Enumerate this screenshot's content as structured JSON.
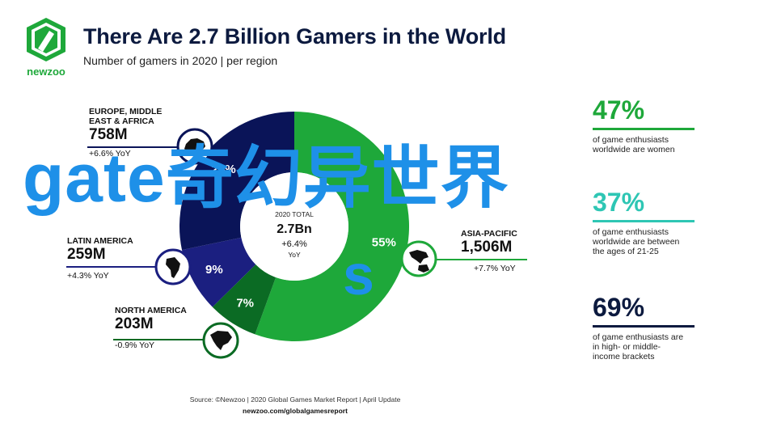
{
  "header": {
    "brand": "newzoo",
    "title": "There Are 2.7 Billion Gamers in the World",
    "subtitle": "Number of gamers in 2020 | per region"
  },
  "colors": {
    "asia_pacific": "#1ea83a",
    "europe_mea": "#0a1458",
    "latin_america": "#1b1f80",
    "north_america": "#0b6b24",
    "navy": "#0c1a3f",
    "green": "#1ea83a",
    "teal": "#2ec6b4"
  },
  "chart_data": {
    "type": "pie",
    "variant": "donut",
    "center": {
      "label": "2020 TOTAL",
      "value": "2.7Bn",
      "growth": "+6.4%",
      "growth_unit": "YoY"
    },
    "slices": [
      {
        "region": "ASIA-PACIFIC",
        "percent": 55,
        "label": "55%",
        "value": "1,506M",
        "growth": "+7.7% YoY",
        "color": "#1ea83a"
      },
      {
        "region": "NORTH AMERICA",
        "percent": 7,
        "label": "7%",
        "value": "203M",
        "growth": "-0.9% YoY",
        "color": "#0b6b24"
      },
      {
        "region": "LATIN AMERICA",
        "percent": 9,
        "label": "9%",
        "value": "259M",
        "growth": "+4.3% YoY",
        "color": "#1b1f80"
      },
      {
        "region": "EUROPE, MIDDLE EAST & AFRICA",
        "percent": 28,
        "label": "28%",
        "value": "758M",
        "growth": "+6.6% YoY",
        "color": "#0a1458"
      }
    ]
  },
  "regions": {
    "emea": {
      "name_line1": "EUROPE, MIDDLE",
      "name_line2": "EAST & AFRICA",
      "value": "758M",
      "growth": "+6.6% YoY"
    },
    "latam": {
      "name_line1": "LATIN AMERICA",
      "value": "259M",
      "growth": "+4.3% YoY"
    },
    "na": {
      "name_line1": "NORTH AMERICA",
      "value": "203M",
      "growth": "-0.9% YoY"
    },
    "apac": {
      "name_line1": "ASIA-PACIFIC",
      "value": "1,506M",
      "growth": "+7.7% YoY"
    }
  },
  "stats": [
    {
      "percent": "47%",
      "line1": "of game enthusiasts",
      "line2": "worldwide are women",
      "line3": "",
      "color": "#1ea83a"
    },
    {
      "percent": "37%",
      "line1": "of game enthusiasts",
      "line2": "worldwide are between",
      "line3": "the ages of 21-25",
      "color": "#2ec6b4"
    },
    {
      "percent": "69%",
      "line1": "of game enthusiasts are",
      "line2": "in high- or middle-",
      "line3": "income brackets",
      "color": "#0c1a3f"
    }
  ],
  "footer": {
    "source": "Source: ©Newzoo | 2020 Global Games Market Report | April Update",
    "url": "newzoo.com/globalgamesreport"
  },
  "overlay": {
    "watermark": "gate奇幻异世界",
    "watermark_letter": "s"
  }
}
